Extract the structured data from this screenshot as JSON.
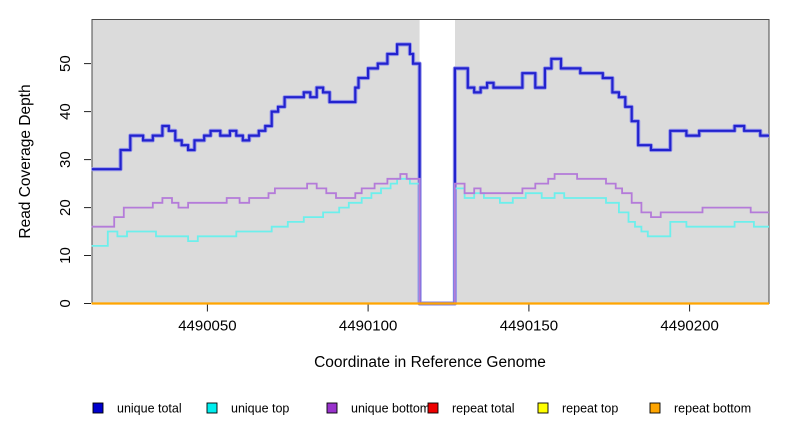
{
  "chart_data": {
    "type": "line",
    "subtype": "step",
    "title": "",
    "xlabel": "Coordinate in Reference Genome",
    "ylabel": "Read Coverage Depth",
    "xlim": [
      4490014.1,
      4490224.7
    ],
    "ylim": [
      0,
      59.2
    ],
    "x_ticks": [
      4490050,
      4490100,
      4490150,
      4490200
    ],
    "y_ticks": [
      0,
      10,
      20,
      30,
      40,
      50
    ],
    "grid": false,
    "panel_background": "#DBDBDB",
    "gap_region": {
      "from": 4490116,
      "to": 4490127,
      "fill": "#FFFFFF"
    },
    "legend_position": "bottom",
    "series": [
      {
        "name": "unique total",
        "legend_color": "#0000CD",
        "line_color": "#2222CE",
        "halo_color": "#9A9AEA",
        "width": 2.2,
        "points": [
          [
            4490014,
            28
          ],
          [
            4490023,
            32
          ],
          [
            4490026,
            35
          ],
          [
            4490030,
            34
          ],
          [
            4490033,
            35
          ],
          [
            4490036,
            37
          ],
          [
            4490038,
            36
          ],
          [
            4490040,
            34
          ],
          [
            4490042,
            33
          ],
          [
            4490044,
            32
          ],
          [
            4490046,
            34
          ],
          [
            4490049,
            35
          ],
          [
            4490051,
            36
          ],
          [
            4490054,
            35
          ],
          [
            4490057,
            36
          ],
          [
            4490059,
            35
          ],
          [
            4490061,
            34
          ],
          [
            4490063,
            35
          ],
          [
            4490066,
            36
          ],
          [
            4490068,
            37
          ],
          [
            4490070,
            40
          ],
          [
            4490072,
            41
          ],
          [
            4490074,
            43
          ],
          [
            4490080,
            44
          ],
          [
            4490082,
            43
          ],
          [
            4490084,
            45
          ],
          [
            4490086,
            44
          ],
          [
            4490088,
            42
          ],
          [
            4490096,
            45
          ],
          [
            4490097,
            47
          ],
          [
            4490100,
            49
          ],
          [
            4490103,
            50
          ],
          [
            4490106,
            52
          ],
          [
            4490109,
            54
          ],
          [
            4490113,
            52
          ],
          [
            4490114,
            50
          ],
          [
            4490116,
            0
          ],
          [
            4490127,
            49
          ],
          [
            4490131,
            45
          ],
          [
            4490133,
            44
          ],
          [
            4490135,
            45
          ],
          [
            4490137,
            46
          ],
          [
            4490139,
            45
          ],
          [
            4490148,
            48
          ],
          [
            4490152,
            45
          ],
          [
            4490155,
            49
          ],
          [
            4490157,
            51
          ],
          [
            4490160,
            49
          ],
          [
            4490166,
            48
          ],
          [
            4490173,
            47
          ],
          [
            4490176,
            44
          ],
          [
            4490178,
            43
          ],
          [
            4490180,
            41
          ],
          [
            4490182,
            38
          ],
          [
            4490184,
            33
          ],
          [
            4490188,
            32
          ],
          [
            4490194,
            36
          ],
          [
            4490199,
            35
          ],
          [
            4490203,
            36
          ],
          [
            4490214,
            37
          ],
          [
            4490217,
            36
          ],
          [
            4490222,
            35
          ]
        ]
      },
      {
        "name": "unique top",
        "legend_color": "#00EEEE",
        "line_color": "#6CEFEC",
        "width": 1.8,
        "points": [
          [
            4490014,
            12
          ],
          [
            4490019,
            15
          ],
          [
            4490022,
            14
          ],
          [
            4490025,
            15
          ],
          [
            4490031,
            15
          ],
          [
            4490034,
            14
          ],
          [
            4490044,
            13
          ],
          [
            4490047,
            14
          ],
          [
            4490059,
            15
          ],
          [
            4490070,
            16
          ],
          [
            4490075,
            17
          ],
          [
            4490080,
            18
          ],
          [
            4490086,
            19
          ],
          [
            4490091,
            20
          ],
          [
            4490094,
            21
          ],
          [
            4490098,
            22
          ],
          [
            4490101,
            23
          ],
          [
            4490104,
            24
          ],
          [
            4490107,
            25
          ],
          [
            4490109,
            26
          ],
          [
            4490113,
            25
          ],
          [
            4490116,
            0
          ],
          [
            4490127,
            24
          ],
          [
            4490130,
            22
          ],
          [
            4490133,
            23
          ],
          [
            4490136,
            22
          ],
          [
            4490141,
            21
          ],
          [
            4490145,
            22
          ],
          [
            4490149,
            23
          ],
          [
            4490154,
            22
          ],
          [
            4490158,
            23
          ],
          [
            4490161,
            22
          ],
          [
            4490174,
            21
          ],
          [
            4490178,
            19
          ],
          [
            4490181,
            17
          ],
          [
            4490183,
            16
          ],
          [
            4490185,
            15
          ],
          [
            4490187,
            14
          ],
          [
            4490194,
            17
          ],
          [
            4490199,
            16
          ],
          [
            4490214,
            17
          ],
          [
            4490220,
            16
          ]
        ]
      },
      {
        "name": "unique bottom",
        "legend_color": "#9932CC",
        "line_color": "#B47BD9",
        "width": 1.8,
        "points": [
          [
            4490014,
            16
          ],
          [
            4490021,
            18
          ],
          [
            4490024,
            20
          ],
          [
            4490033,
            21
          ],
          [
            4490036,
            22
          ],
          [
            4490039,
            21
          ],
          [
            4490041,
            20
          ],
          [
            4490044,
            21
          ],
          [
            4490056,
            22
          ],
          [
            4490060,
            21
          ],
          [
            4490063,
            22
          ],
          [
            4490069,
            23
          ],
          [
            4490071,
            24
          ],
          [
            4490081,
            25
          ],
          [
            4490084,
            24
          ],
          [
            4490087,
            23
          ],
          [
            4490090,
            22
          ],
          [
            4490096,
            23
          ],
          [
            4490098,
            24
          ],
          [
            4490102,
            25
          ],
          [
            4490106,
            26
          ],
          [
            4490110,
            27
          ],
          [
            4490112,
            26
          ],
          [
            4490116,
            0
          ],
          [
            4490127,
            25
          ],
          [
            4490130,
            23
          ],
          [
            4490133,
            24
          ],
          [
            4490135,
            23
          ],
          [
            4490148,
            24
          ],
          [
            4490152,
            25
          ],
          [
            4490156,
            26
          ],
          [
            4490158,
            27
          ],
          [
            4490165,
            26
          ],
          [
            4490174,
            25
          ],
          [
            4490177,
            24
          ],
          [
            4490179,
            23
          ],
          [
            4490182,
            21
          ],
          [
            4490185,
            19
          ],
          [
            4490188,
            18
          ],
          [
            4490191,
            19
          ],
          [
            4490204,
            20
          ],
          [
            4490219,
            19
          ]
        ]
      },
      {
        "name": "repeat total",
        "legend_color": "#EE0000",
        "line_color": "#DD0000",
        "width": 1.6,
        "points": [
          [
            4490014,
            0
          ]
        ]
      },
      {
        "name": "repeat top",
        "legend_color": "#FFFF00",
        "line_color": "#FFFF00",
        "width": 1.6,
        "points": [
          [
            4490014,
            0
          ]
        ]
      },
      {
        "name": "repeat bottom",
        "legend_color": "#FFA500",
        "line_color": "#FFA500",
        "width": 2.2,
        "points": [
          [
            4490014,
            0
          ]
        ]
      }
    ]
  }
}
